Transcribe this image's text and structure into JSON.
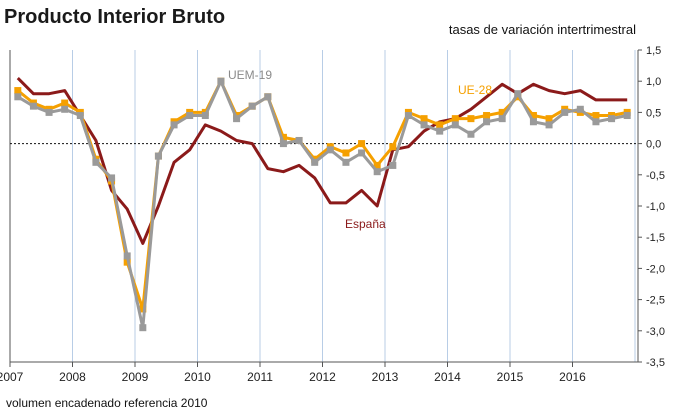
{
  "chart_data": {
    "type": "line",
    "title": "Producto Interior Bruto",
    "subtitle": "tasas de variación intertrimestral",
    "footnote": "volumen encadenado referencia 2010",
    "x_labels": [
      "2007",
      "2008",
      "2009",
      "2010",
      "2011",
      "2012",
      "2013",
      "2014",
      "2015",
      "2016"
    ],
    "y_ticks": [
      "1,5",
      "1,0",
      "0,5",
      "0,0",
      "-0,5",
      "-1,0",
      "-1,5",
      "-2,0",
      "-2,5",
      "-3,0",
      "-3,5"
    ],
    "y_tick_values": [
      1.5,
      1.0,
      0.5,
      0.0,
      -0.5,
      -1.0,
      -1.5,
      -2.0,
      -2.5,
      -3.0,
      -3.5
    ],
    "ylim": [
      -3.5,
      1.5
    ],
    "x": [
      "2007T1",
      "2007T2",
      "2007T3",
      "2007T4",
      "2008T1",
      "2008T2",
      "2008T3",
      "2008T4",
      "2009T1",
      "2009T2",
      "2009T3",
      "2009T4",
      "2010T1",
      "2010T2",
      "2010T3",
      "2010T4",
      "2011T1",
      "2011T2",
      "2011T3",
      "2011T4",
      "2012T1",
      "2012T2",
      "2012T3",
      "2012T4",
      "2013T1",
      "2013T2",
      "2013T3",
      "2013T4",
      "2014T1",
      "2014T2",
      "2014T3",
      "2014T4",
      "2015T1",
      "2015T2",
      "2015T3",
      "2015T4",
      "2016T1",
      "2016T2",
      "2016T3",
      "2016T4"
    ],
    "grid": "vertical",
    "zero_line": "dashed",
    "series": [
      {
        "name": "España",
        "color": "#8b1a1a",
        "marker": "none",
        "values": [
          1.05,
          0.8,
          0.8,
          0.85,
          0.45,
          0.05,
          -0.75,
          -1.05,
          -1.6,
          -1.0,
          -0.3,
          -0.1,
          0.3,
          0.2,
          0.05,
          0.0,
          -0.4,
          -0.45,
          -0.35,
          -0.55,
          -0.95,
          -0.95,
          -0.75,
          -1.0,
          -0.1,
          -0.05,
          0.2,
          0.35,
          0.4,
          0.55,
          0.75,
          0.95,
          0.8,
          0.95,
          0.85,
          0.8,
          0.85,
          0.7,
          0.7,
          0.7
        ]
      },
      {
        "name": "UEM-19",
        "color": "#9a9a9a",
        "marker": "square",
        "values": [
          0.75,
          0.6,
          0.5,
          0.55,
          0.45,
          -0.3,
          -0.55,
          -1.8,
          -2.95,
          -0.2,
          0.3,
          0.45,
          0.45,
          1.0,
          0.4,
          0.6,
          0.75,
          0.0,
          0.05,
          -0.3,
          -0.1,
          -0.3,
          -0.15,
          -0.45,
          -0.35,
          0.45,
          0.3,
          0.2,
          0.3,
          0.15,
          0.35,
          0.4,
          0.8,
          0.35,
          0.3,
          0.5,
          0.55,
          0.35,
          0.4,
          0.45
        ]
      },
      {
        "name": "UE-28",
        "color": "#f5a000",
        "marker": "square",
        "values": [
          0.85,
          0.65,
          0.55,
          0.65,
          0.5,
          -0.25,
          -0.6,
          -1.9,
          -2.65,
          -0.2,
          0.35,
          0.5,
          0.5,
          1.0,
          0.45,
          0.6,
          0.75,
          0.1,
          0.05,
          -0.25,
          -0.05,
          -0.15,
          0.0,
          -0.35,
          -0.05,
          0.5,
          0.4,
          0.3,
          0.4,
          0.4,
          0.45,
          0.5,
          0.75,
          0.45,
          0.4,
          0.55,
          0.5,
          0.45,
          0.45,
          0.5
        ]
      }
    ]
  }
}
